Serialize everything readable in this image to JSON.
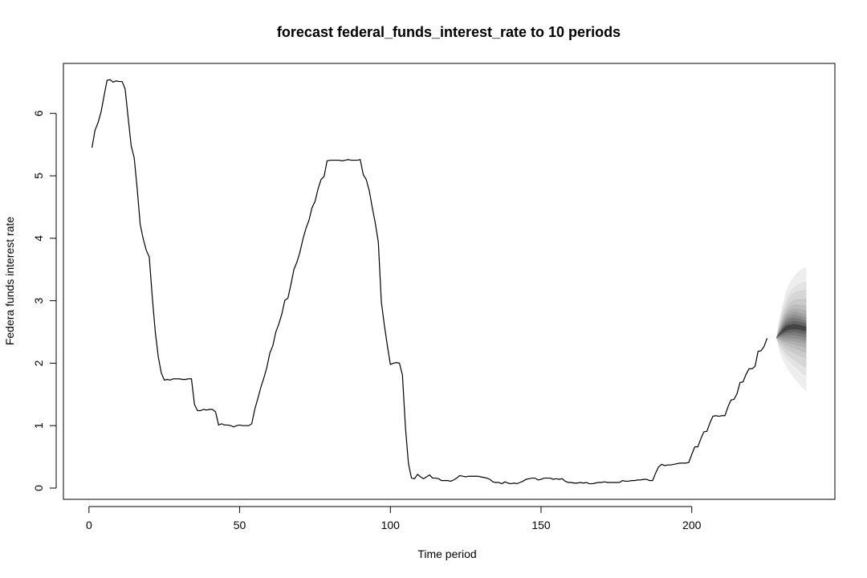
{
  "chart_data": {
    "type": "line",
    "title": "forecast federal_funds_interest_rate to 10 periods",
    "xlabel": "Time period",
    "ylabel": "Federa funds interest rate",
    "xlim": [
      1,
      238
    ],
    "ylim": [
      -0.18,
      6.8
    ],
    "x_ticks": [
      0,
      50,
      100,
      150,
      200
    ],
    "y_ticks": [
      0,
      1,
      2,
      3,
      4,
      5,
      6
    ],
    "grid": false,
    "legend": "none",
    "series": [
      {
        "values": [
          5.45,
          5.73,
          5.85,
          6.02,
          6.28,
          6.53,
          6.54,
          6.5,
          6.52,
          6.51,
          6.51,
          6.39,
          5.93,
          5.48,
          5.29,
          4.79,
          4.22,
          3.99,
          3.81,
          3.7,
          3.06,
          2.5,
          2.1,
          1.84,
          1.73,
          1.74,
          1.73,
          1.75,
          1.75,
          1.75,
          1.74,
          1.74,
          1.75,
          1.75,
          1.34,
          1.24,
          1.24,
          1.26,
          1.25,
          1.26,
          1.26,
          1.22,
          1.01,
          1.03,
          1.01,
          1.01,
          1.0,
          0.98,
          1.0,
          1.01,
          1.0,
          1.0,
          1.0,
          1.03,
          1.26,
          1.43,
          1.61,
          1.76,
          1.93,
          2.16,
          2.28,
          2.5,
          2.63,
          2.79,
          3.01,
          3.04,
          3.26,
          3.5,
          3.62,
          3.78,
          3.99,
          4.16,
          4.29,
          4.49,
          4.59,
          4.79,
          4.94,
          4.99,
          5.24,
          5.25,
          5.25,
          5.25,
          5.25,
          5.24,
          5.25,
          5.26,
          5.25,
          5.25,
          5.25,
          5.26,
          5.02,
          4.94,
          4.76,
          4.49,
          4.24,
          3.94,
          2.98,
          2.61,
          2.28,
          1.98,
          2.0,
          2.01,
          2.0,
          1.81,
          0.97,
          0.39,
          0.16,
          0.15,
          0.22,
          0.18,
          0.15,
          0.18,
          0.21,
          0.16,
          0.16,
          0.15,
          0.12,
          0.12,
          0.12,
          0.11,
          0.13,
          0.16,
          0.2,
          0.19,
          0.18,
          0.19,
          0.19,
          0.19,
          0.19,
          0.18,
          0.17,
          0.16,
          0.14,
          0.1,
          0.09,
          0.09,
          0.07,
          0.1,
          0.08,
          0.07,
          0.08,
          0.07,
          0.09,
          0.11,
          0.14,
          0.15,
          0.16,
          0.16,
          0.13,
          0.14,
          0.16,
          0.16,
          0.16,
          0.14,
          0.15,
          0.14,
          0.15,
          0.11,
          0.09,
          0.09,
          0.08,
          0.08,
          0.09,
          0.08,
          0.09,
          0.07,
          0.07,
          0.08,
          0.09,
          0.09,
          0.1,
          0.09,
          0.09,
          0.09,
          0.09,
          0.09,
          0.12,
          0.11,
          0.11,
          0.12,
          0.12,
          0.13,
          0.13,
          0.14,
          0.14,
          0.12,
          0.12,
          0.24,
          0.34,
          0.38,
          0.36,
          0.37,
          0.37,
          0.38,
          0.39,
          0.4,
          0.4,
          0.4,
          0.41,
          0.54,
          0.66,
          0.66,
          0.79,
          0.9,
          0.91,
          1.04,
          1.15,
          1.16,
          1.15,
          1.16,
          1.16,
          1.3,
          1.41,
          1.42,
          1.51,
          1.69,
          1.7,
          1.82,
          1.91,
          1.91,
          1.95,
          2.19,
          2.2,
          2.27,
          2.4
        ]
      }
    ],
    "forecast": {
      "start_x": 228,
      "start_value": 2.4,
      "x": [
        229,
        230,
        231,
        232,
        233,
        234,
        235,
        236,
        237,
        238
      ],
      "mean": [
        2.46,
        2.51,
        2.55,
        2.57,
        2.58,
        2.59,
        2.58,
        2.57,
        2.56,
        2.55
      ],
      "bands": [
        {
          "level": 99,
          "lower": [
            2.2,
            2.07,
            1.97,
            1.89,
            1.82,
            1.76,
            1.7,
            1.64,
            1.59,
            1.55
          ],
          "upper": [
            2.71,
            2.93,
            3.11,
            3.24,
            3.33,
            3.4,
            3.45,
            3.49,
            3.52,
            3.54
          ]
        },
        {
          "level": 95,
          "lower": [
            2.26,
            2.17,
            2.1,
            2.04,
            1.99,
            1.95,
            1.91,
            1.86,
            1.82,
            1.79
          ],
          "upper": [
            2.66,
            2.85,
            3.0,
            3.11,
            3.18,
            3.23,
            3.26,
            3.28,
            3.3,
            3.31
          ]
        },
        {
          "level": 90,
          "lower": [
            2.29,
            2.22,
            2.17,
            2.12,
            2.08,
            2.05,
            2.01,
            1.98,
            1.95,
            1.92
          ],
          "upper": [
            2.63,
            2.8,
            2.93,
            3.03,
            3.09,
            3.13,
            3.15,
            3.16,
            3.17,
            3.18
          ]
        },
        {
          "level": 80,
          "lower": [
            2.33,
            2.28,
            2.24,
            2.21,
            2.18,
            2.16,
            2.13,
            2.11,
            2.09,
            2.07
          ],
          "upper": [
            2.59,
            2.74,
            2.86,
            2.94,
            2.99,
            3.02,
            3.03,
            3.03,
            3.03,
            3.03
          ]
        },
        {
          "level": 70,
          "lower": [
            2.36,
            2.32,
            2.29,
            2.27,
            2.25,
            2.24,
            2.22,
            2.2,
            2.18,
            2.17
          ],
          "upper": [
            2.56,
            2.7,
            2.81,
            2.88,
            2.92,
            2.94,
            2.94,
            2.93,
            2.93,
            2.92
          ]
        },
        {
          "level": 60,
          "lower": [
            2.38,
            2.35,
            2.33,
            2.32,
            2.31,
            2.3,
            2.28,
            2.27,
            2.26,
            2.25
          ],
          "upper": [
            2.54,
            2.67,
            2.77,
            2.83,
            2.86,
            2.88,
            2.87,
            2.86,
            2.85,
            2.84
          ]
        },
        {
          "level": 50,
          "lower": [
            2.4,
            2.38,
            2.37,
            2.36,
            2.36,
            2.35,
            2.34,
            2.33,
            2.32,
            2.31
          ],
          "upper": [
            2.52,
            2.64,
            2.73,
            2.79,
            2.81,
            2.83,
            2.82,
            2.8,
            2.79,
            2.78
          ]
        },
        {
          "level": 40,
          "lower": [
            2.42,
            2.41,
            2.41,
            2.4,
            2.4,
            2.4,
            2.39,
            2.38,
            2.37,
            2.36
          ],
          "upper": [
            2.5,
            2.61,
            2.69,
            2.74,
            2.76,
            2.78,
            2.77,
            2.75,
            2.74,
            2.73
          ]
        },
        {
          "level": 30,
          "lower": [
            2.43,
            2.44,
            2.44,
            2.45,
            2.45,
            2.45,
            2.44,
            2.43,
            2.42,
            2.41
          ],
          "upper": [
            2.49,
            2.58,
            2.66,
            2.7,
            2.72,
            2.73,
            2.72,
            2.71,
            2.69,
            2.68
          ]
        },
        {
          "level": 20,
          "lower": [
            2.44,
            2.46,
            2.48,
            2.49,
            2.49,
            2.5,
            2.49,
            2.48,
            2.47,
            2.46
          ],
          "upper": [
            2.48,
            2.56,
            2.62,
            2.65,
            2.67,
            2.68,
            2.67,
            2.66,
            2.65,
            2.64
          ]
        },
        {
          "level": 10,
          "lower": [
            2.45,
            2.49,
            2.51,
            2.53,
            2.54,
            2.54,
            2.54,
            2.53,
            2.52,
            2.51
          ],
          "upper": [
            2.47,
            2.53,
            2.59,
            2.61,
            2.62,
            2.63,
            2.62,
            2.61,
            2.6,
            2.59
          ]
        }
      ],
      "band_colors": [
        "#eeeeee",
        "#e3e3e3",
        "#d6d6d6",
        "#c9c9c9",
        "#bcbcbc",
        "#aeaeae",
        "#9f9f9f",
        "#8e8e8e",
        "#7b7b7b",
        "#656565",
        "#444444"
      ]
    }
  }
}
